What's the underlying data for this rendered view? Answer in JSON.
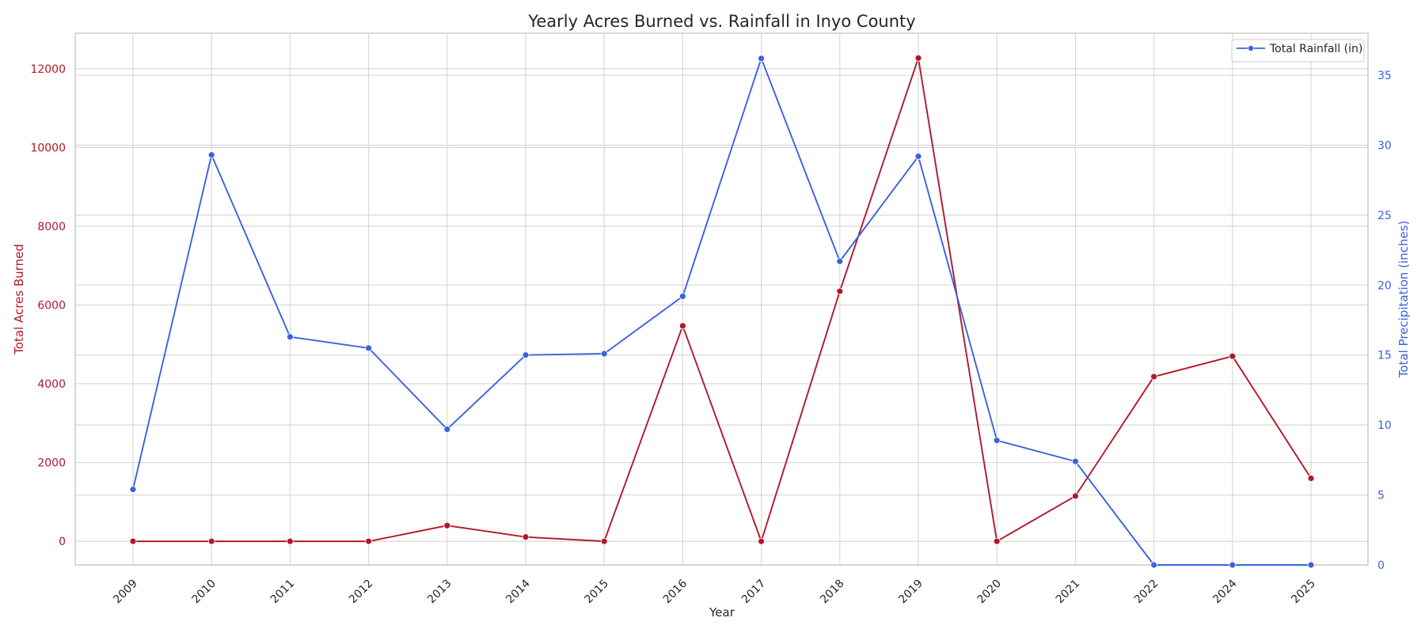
{
  "chart_data": {
    "type": "line",
    "title": "Yearly Acres Burned vs. Rainfall in Inyo County",
    "xlabel": "Year",
    "categories": [
      "2009",
      "2010",
      "2011",
      "2012",
      "2013",
      "2014",
      "2015",
      "2016",
      "2017",
      "2018",
      "2019",
      "2020",
      "2021",
      "2022",
      "2024",
      "2025"
    ],
    "y_left": {
      "label": "Total Acres Burned",
      "color": "#b2182b",
      "ylim": [
        -600,
        12900
      ],
      "ticks": [
        0,
        2000,
        4000,
        6000,
        8000,
        10000,
        12000
      ]
    },
    "y_right": {
      "label": "Total Precipitation (inches)",
      "color": "#3b62de",
      "ylim": [
        0,
        38
      ],
      "ticks": [
        0,
        5,
        10,
        15,
        20,
        25,
        30,
        35
      ]
    },
    "series": [
      {
        "name": "",
        "axis": "left",
        "color": "#b2182b",
        "values": [
          0,
          0,
          0,
          0,
          400,
          110,
          0,
          5470,
          0,
          6350,
          12270,
          0,
          1150,
          4180,
          4700,
          1600
        ]
      },
      {
        "name": "Total Rainfall (in)",
        "axis": "right",
        "color": "#3b62de",
        "values": [
          5.4,
          29.3,
          16.3,
          15.5,
          9.7,
          15.0,
          15.1,
          19.2,
          36.2,
          21.7,
          29.2,
          8.9,
          7.4,
          0,
          0,
          0
        ]
      }
    ],
    "grid": true,
    "legend": {
      "position": "top-right",
      "entries": [
        "Total Rainfall (in)"
      ]
    }
  }
}
